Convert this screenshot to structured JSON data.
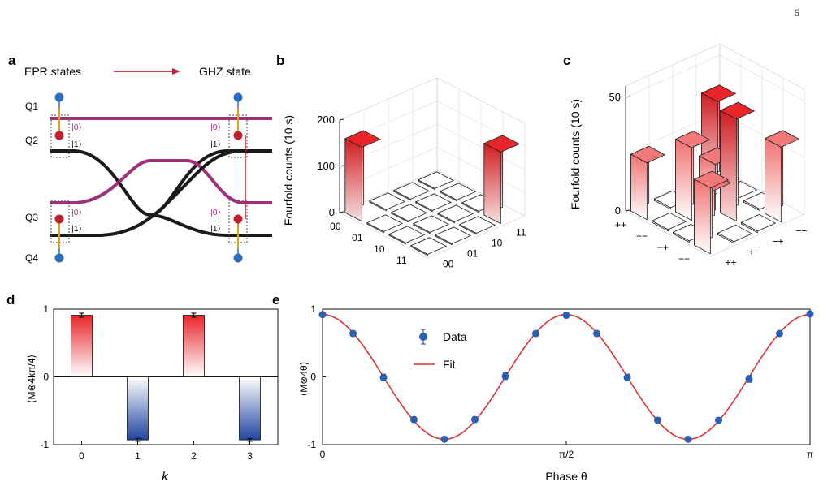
{
  "page_number": "6",
  "panels": {
    "a": {
      "label": "a",
      "left_title": "EPR states",
      "right_title": "GHZ state",
      "qubits": [
        "Q1",
        "Q2",
        "Q3",
        "Q4"
      ],
      "ket0": "|0⟩",
      "ket1": "|1⟩"
    },
    "b": {
      "label": "b"
    },
    "c": {
      "label": "c"
    },
    "d": {
      "label": "d"
    },
    "e": {
      "label": "e"
    }
  },
  "colors": {
    "red": "#e8262a",
    "blue": "#2a52a8",
    "purple": "#a0307a",
    "path_black": "#1a1a1a",
    "fit_red": "#e03030",
    "dot_blue": "#2a6fc0"
  },
  "chart_data": [
    {
      "panel": "b",
      "type": "bar3d",
      "zlabel": "Fourfold counts (10 s)",
      "z_ticks": [
        "0",
        "100",
        "200"
      ],
      "zlim": [
        0,
        200
      ],
      "x_categories": [
        "00",
        "01",
        "10",
        "11"
      ],
      "y_categories": [
        "00",
        "01",
        "10",
        "11"
      ],
      "values": [
        [
          160,
          0,
          0,
          0
        ],
        [
          0,
          0,
          0,
          0
        ],
        [
          0,
          0,
          0,
          0
        ],
        [
          0,
          0,
          0,
          155
        ]
      ]
    },
    {
      "panel": "c",
      "type": "bar3d",
      "zlabel": "Fourfold counts (10 s)",
      "z_ticks": [
        "0",
        "50"
      ],
      "zlim": [
        0,
        55
      ],
      "x_categories": [
        "++",
        "+−",
        "−+",
        "−−"
      ],
      "y_categories": [
        "++",
        "+−",
        "−+",
        "−−"
      ],
      "values": [
        [
          25,
          0,
          0,
          38
        ],
        [
          0,
          32,
          20,
          0
        ],
        [
          0,
          18,
          45,
          0
        ],
        [
          29,
          0,
          0,
          33
        ]
      ]
    },
    {
      "panel": "d",
      "type": "bar",
      "ylabel": "⟨M⊗4kπ/4⟩",
      "xlabel": "k",
      "categories": [
        "0",
        "1",
        "2",
        "3"
      ],
      "values": [
        0.91,
        -0.93,
        0.91,
        -0.93
      ],
      "errors": [
        0.03,
        0.02,
        0.03,
        0.02
      ],
      "ylim": [
        -1,
        1
      ],
      "y_ticks": [
        "-1",
        "0",
        "1"
      ]
    },
    {
      "panel": "e",
      "type": "scatter",
      "ylabel": "⟨M⊗4θ⟩",
      "xlabel": "Phase θ",
      "x_ticks": [
        "0",
        "π/2",
        "π"
      ],
      "y_ticks": [
        "-1",
        "0",
        "1"
      ],
      "xlim": [
        0,
        1
      ],
      "ylim": [
        -1,
        1
      ],
      "series": [
        {
          "name": "Data",
          "x": [
            0,
            0.0625,
            0.125,
            0.1875,
            0.25,
            0.3125,
            0.375,
            0.4375,
            0.5,
            0.5625,
            0.625,
            0.6875,
            0.75,
            0.8125,
            0.875,
            0.9375,
            1.0
          ],
          "y": [
            0.92,
            0.64,
            -0.01,
            -0.63,
            -0.92,
            -0.63,
            0.01,
            0.64,
            0.91,
            0.64,
            -0.01,
            -0.64,
            -0.92,
            -0.64,
            -0.03,
            0.64,
            0.93
          ],
          "err": [
            0.03,
            0.04,
            0.05,
            0.04,
            0.03,
            0.04,
            0.05,
            0.04,
            0.03,
            0.04,
            0.05,
            0.04,
            0.03,
            0.04,
            0.05,
            0.04,
            0.03
          ]
        },
        {
          "name": "Fit",
          "function": "0.92*cos(4θ)"
        }
      ],
      "legend": [
        "Data",
        "Fit"
      ]
    }
  ]
}
